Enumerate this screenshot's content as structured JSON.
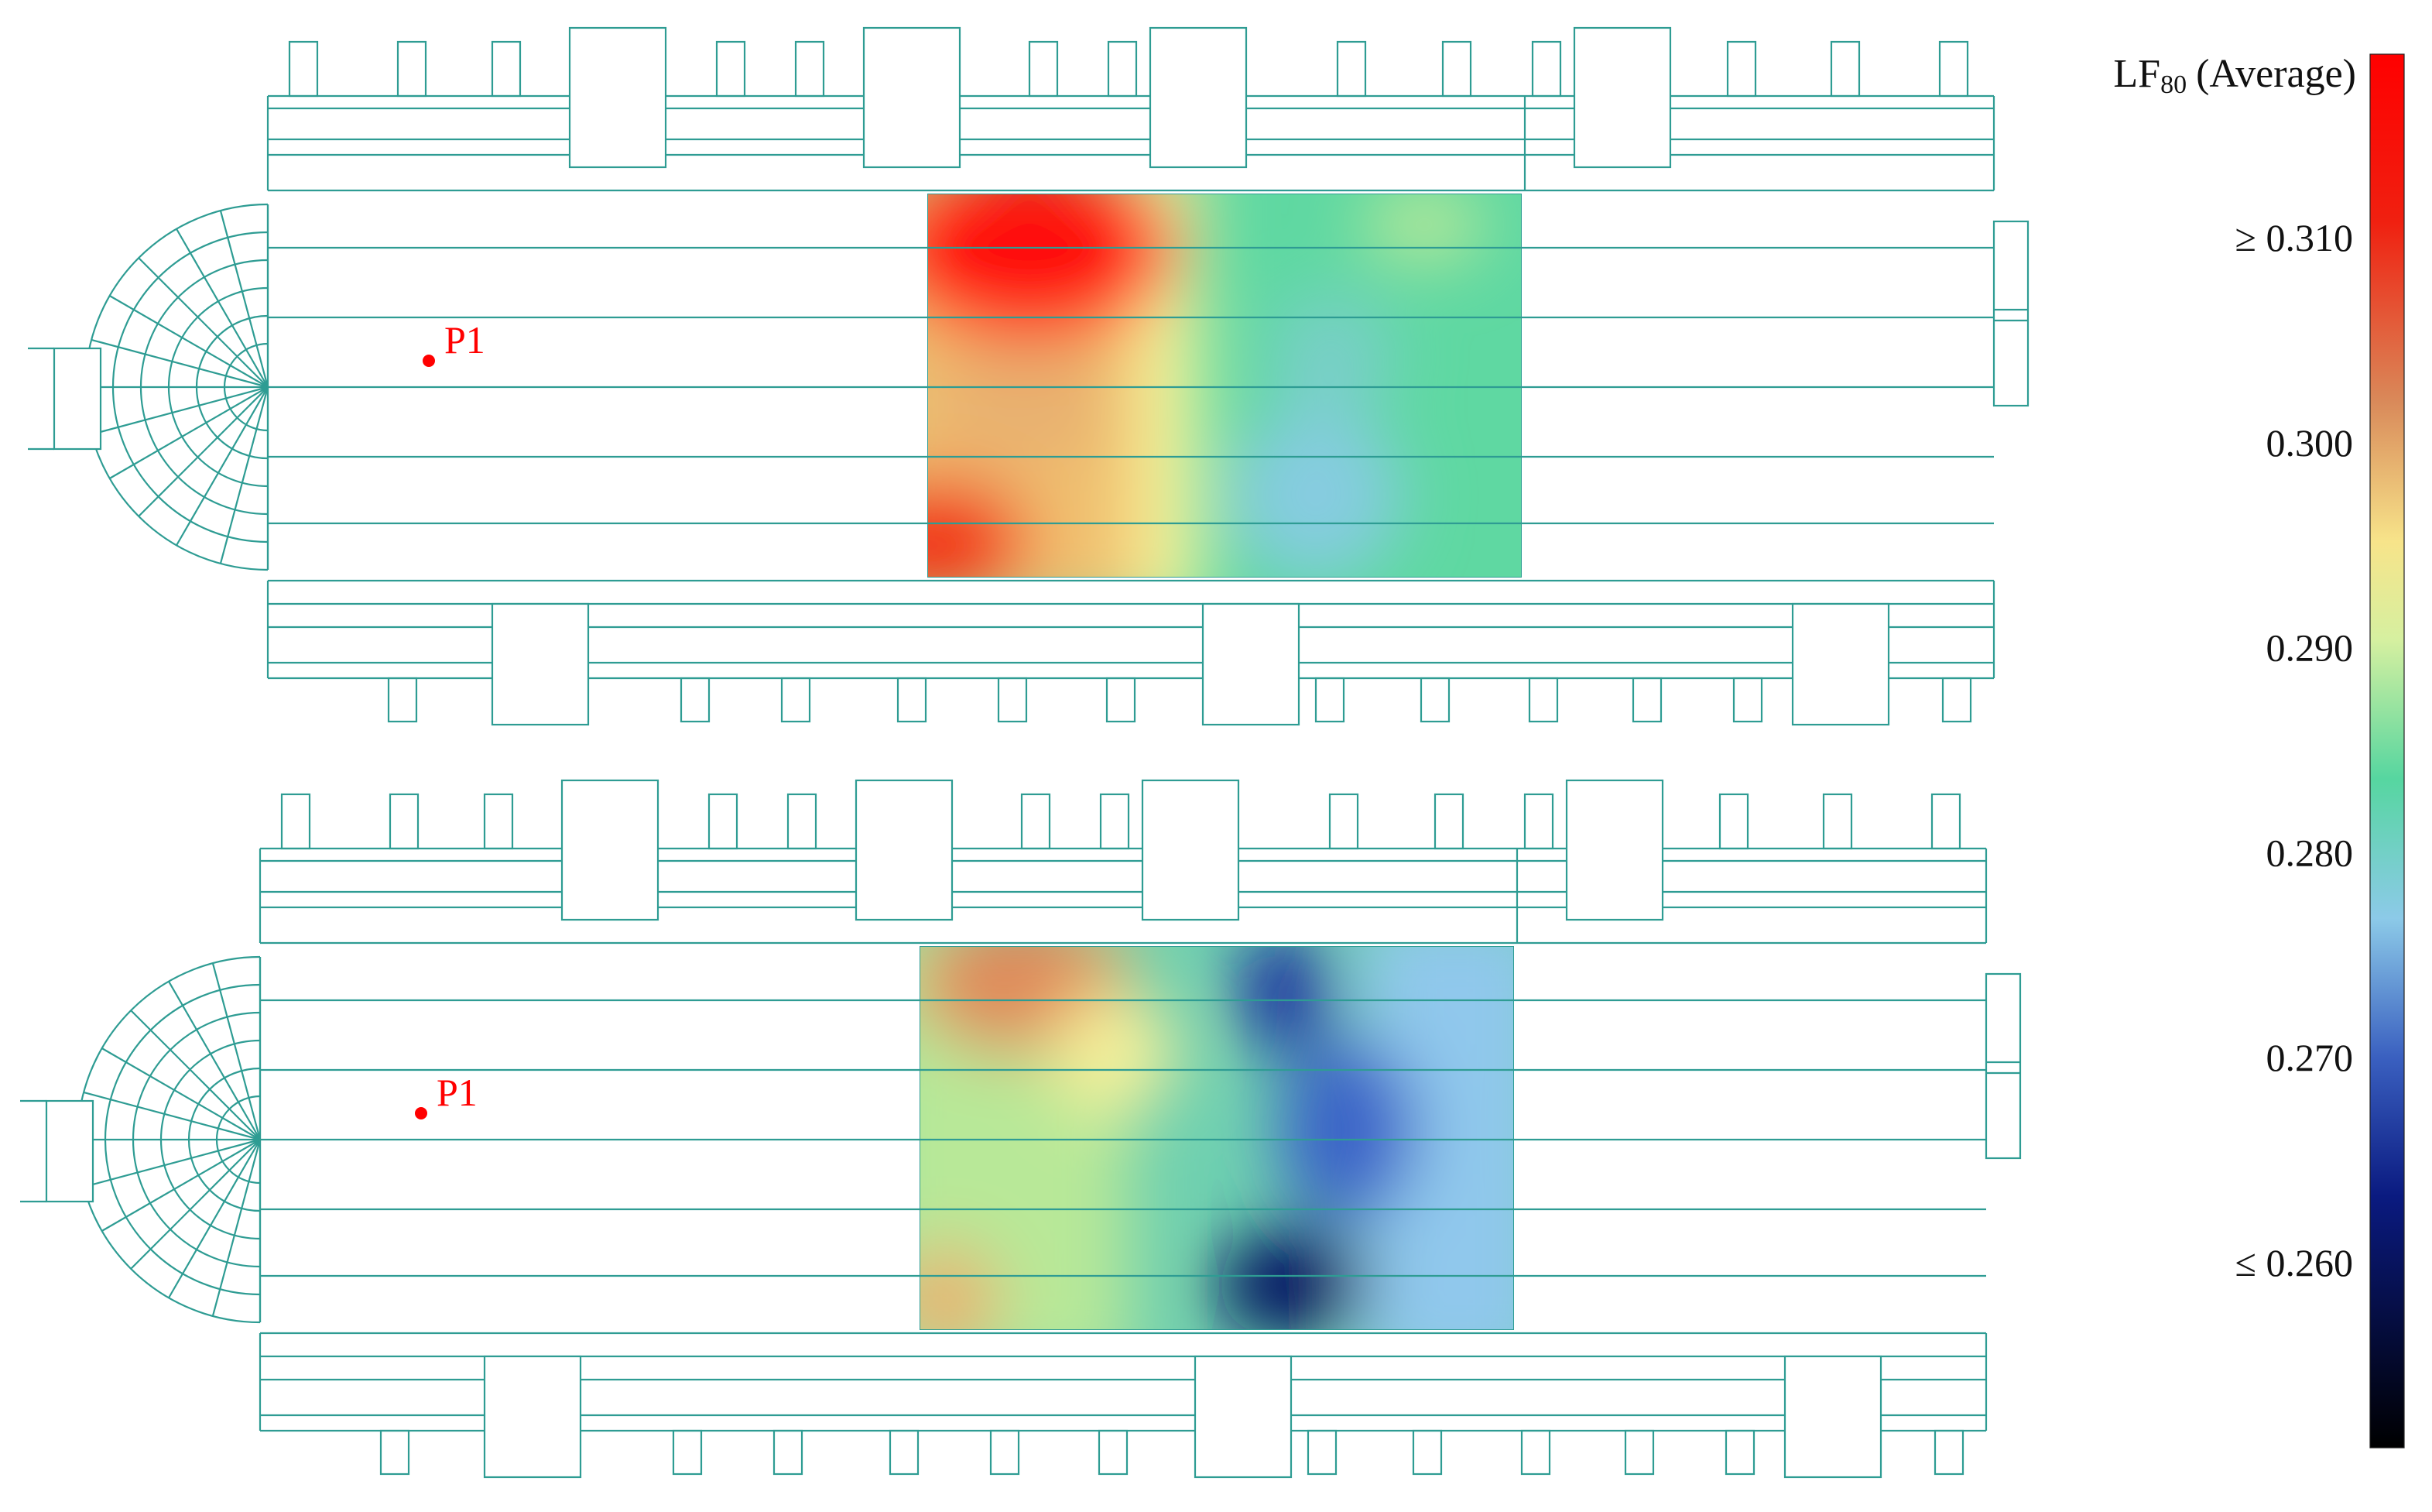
{
  "colorbar": {
    "title_main": "LF",
    "title_sub": "80",
    "title_rest": "(Average)",
    "range": [
      0.251,
      0.319
    ],
    "ticks": [
      {
        "value": 0.31,
        "label": "≥ 0.310"
      },
      {
        "value": 0.3,
        "label": "0.300"
      },
      {
        "value": 0.29,
        "label": "0.290"
      },
      {
        "value": 0.28,
        "label": "0.280"
      },
      {
        "value": 0.27,
        "label": "0.270"
      },
      {
        "value": 0.26,
        "label": "≤ 0.260"
      }
    ]
  },
  "plans": [
    {
      "point_label": "P1"
    },
    {
      "point_label": "P1"
    }
  ]
}
